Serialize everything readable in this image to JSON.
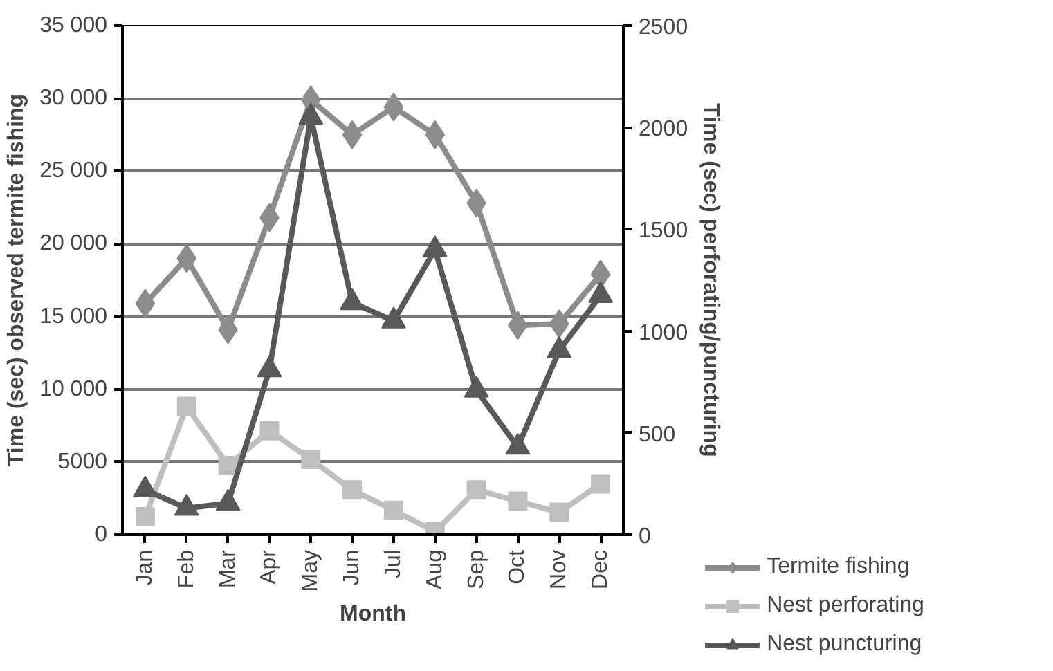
{
  "chart_data": {
    "type": "line",
    "xlabel": "Month",
    "ylabel": "Time (sec) observed termite fishing",
    "y2label": "Time (sec) perforating/puncturing",
    "categories": [
      "Jan",
      "Feb",
      "Mar",
      "Apr",
      "May",
      "Jun",
      "Jul",
      "Aug",
      "Sep",
      "Oct",
      "Nov",
      "Dec"
    ],
    "series": [
      {
        "name": "Termite fishing",
        "color": "#8c8c8c",
        "marker": "diamond",
        "values": [
          15900,
          19000,
          14100,
          21800,
          29900,
          27500,
          29400,
          27500,
          22800,
          14400,
          14500,
          17900
        ]
      },
      {
        "name": "Nest perforating",
        "color": "#bfbfbf",
        "marker": "square",
        "axis": "y2",
        "values": [
          88,
          630,
          340,
          510,
          370,
          220,
          120,
          15,
          220,
          165,
          110,
          250
        ]
      },
      {
        "name": "Nest puncturing",
        "color": "#595959",
        "marker": "triangle",
        "axis": "y2",
        "values": [
          220,
          130,
          155,
          810,
          2050,
          1140,
          1050,
          1400,
          710,
          430,
          905,
          1175
        ]
      }
    ],
    "ylim": [
      0,
      35000
    ],
    "yticks": [
      0,
      {
        "value": 5000,
        "label": "5000"
      },
      {
        "value": 10000,
        "label": "10 000"
      },
      {
        "value": 15000,
        "label": "15 000"
      },
      {
        "value": 20000,
        "label": "20 000"
      },
      {
        "value": 25000,
        "label": "25 000"
      },
      {
        "value": 30000,
        "label": "30 000"
      },
      {
        "value": 35000,
        "label": "35 000"
      }
    ],
    "y2lim": [
      0,
      2500
    ],
    "y2ticks": [
      0,
      500,
      1000,
      1500,
      2000,
      2500
    ],
    "grid": "y",
    "legend": "bottom right",
    "line_style": "solid"
  }
}
